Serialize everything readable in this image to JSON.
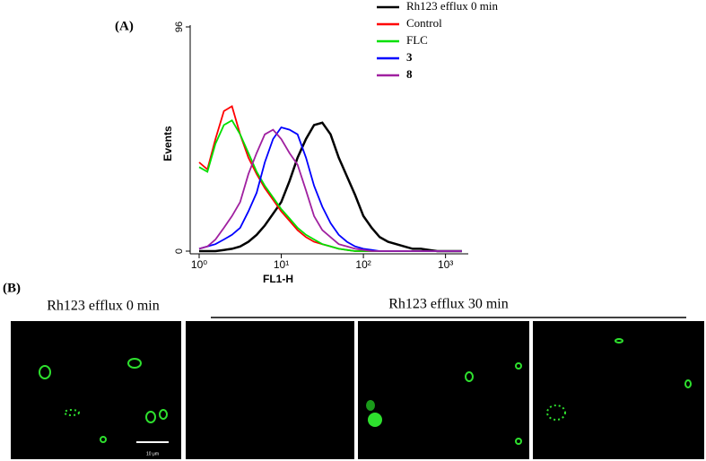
{
  "panel_a_label": "(A)",
  "chart_data": {
    "type": "line",
    "xlabel": "FL1-H",
    "ylabel": "Events",
    "xscale": "log",
    "xlim": [
      1,
      1800
    ],
    "ylim": [
      0,
      96
    ],
    "xticks": [
      {
        "value": 1,
        "label": "10⁰"
      },
      {
        "value": 10,
        "label": "10¹"
      },
      {
        "value": 100,
        "label": "10²"
      },
      {
        "value": 1000,
        "label": "10³"
      }
    ],
    "yticks": [
      0,
      96
    ],
    "x": [
      1,
      1.26,
      1.58,
      2,
      2.51,
      3.16,
      3.98,
      5.01,
      6.31,
      7.94,
      10,
      12.6,
      15.8,
      20,
      25.1,
      31.6,
      39.8,
      50.1,
      63.1,
      79.4,
      100,
      126,
      158,
      200,
      251,
      316,
      398,
      501,
      631,
      794,
      1000,
      1259,
      1585
    ],
    "series": [
      {
        "name": "Rh123 efflux 0 min",
        "color": "#000000",
        "values": [
          0,
          0,
          0,
          0.5,
          1,
          2,
          4,
          7,
          11,
          16,
          21,
          30,
          40,
          48,
          54,
          55,
          50,
          40,
          32,
          24,
          15,
          10,
          6,
          4,
          3,
          2,
          1,
          1,
          0.5,
          0,
          0,
          0,
          0
        ]
      },
      {
        "name": "Control",
        "color": "#ff0000",
        "values": [
          38,
          35,
          48,
          60,
          62,
          50,
          40,
          33,
          27,
          22,
          17,
          13,
          9,
          6,
          4,
          3,
          2,
          1,
          0.5,
          0,
          0,
          0,
          0,
          0,
          0,
          0,
          0,
          0,
          0,
          0,
          0,
          0,
          0
        ]
      },
      {
        "name": "FLC",
        "color": "#00e000",
        "values": [
          36,
          34,
          46,
          54,
          56,
          50,
          42,
          34,
          28,
          23,
          18,
          14,
          10,
          7,
          5,
          3,
          2,
          1,
          0.5,
          0,
          0,
          0,
          0,
          0,
          0,
          0,
          0,
          0,
          0,
          0,
          0,
          0,
          0
        ]
      },
      {
        "name": "3",
        "color": "#0000ff",
        "values": [
          1,
          2,
          3,
          5,
          7,
          10,
          17,
          25,
          38,
          48,
          53,
          52,
          50,
          40,
          28,
          19,
          12,
          7,
          4,
          2,
          1,
          0.5,
          0,
          0,
          0,
          0,
          0,
          0,
          0,
          0,
          0,
          0,
          0
        ]
      },
      {
        "name": "8",
        "color": "#a020a0",
        "values": [
          1,
          2,
          5,
          10,
          15,
          21,
          33,
          42,
          50,
          52,
          48,
          42,
          37,
          26,
          15,
          9,
          6,
          3,
          2,
          1,
          0.5,
          0,
          0,
          0,
          0,
          0,
          0,
          0,
          0,
          0,
          0,
          0,
          0
        ]
      }
    ]
  },
  "panel_b": {
    "label": "(B)",
    "title_left": "Rh123 efflux 0 min",
    "title_right": "Rh123 efflux 30 min",
    "scale_bar": "10 μm"
  }
}
